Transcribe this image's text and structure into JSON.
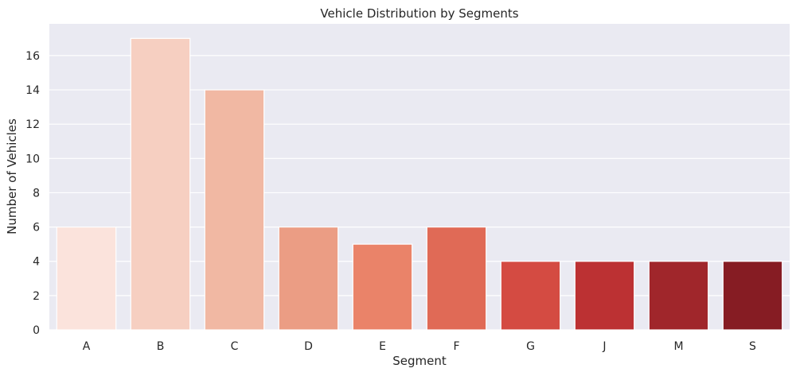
{
  "chart_data": {
    "type": "bar",
    "title": "Vehicle Distribution by Segments",
    "xlabel": "Segment",
    "ylabel": "Number of Vehicles",
    "categories": [
      "A",
      "B",
      "C",
      "D",
      "E",
      "F",
      "G",
      "J",
      "M",
      "S"
    ],
    "values": [
      6,
      17,
      14,
      6,
      5,
      6,
      4,
      4,
      4,
      4
    ],
    "ylim": [
      0,
      17.85
    ],
    "yticks": [
      0,
      2,
      4,
      6,
      8,
      10,
      12,
      14,
      16
    ],
    "grid": true,
    "legend": "none",
    "colors": [
      "#fbe3dc",
      "#f6cfc1",
      "#f1b8a3",
      "#eb9d84",
      "#ea8369",
      "#e06a56",
      "#d44b42",
      "#bc3133",
      "#a0262b",
      "#861c23"
    ],
    "background": "#eaeaf2"
  }
}
